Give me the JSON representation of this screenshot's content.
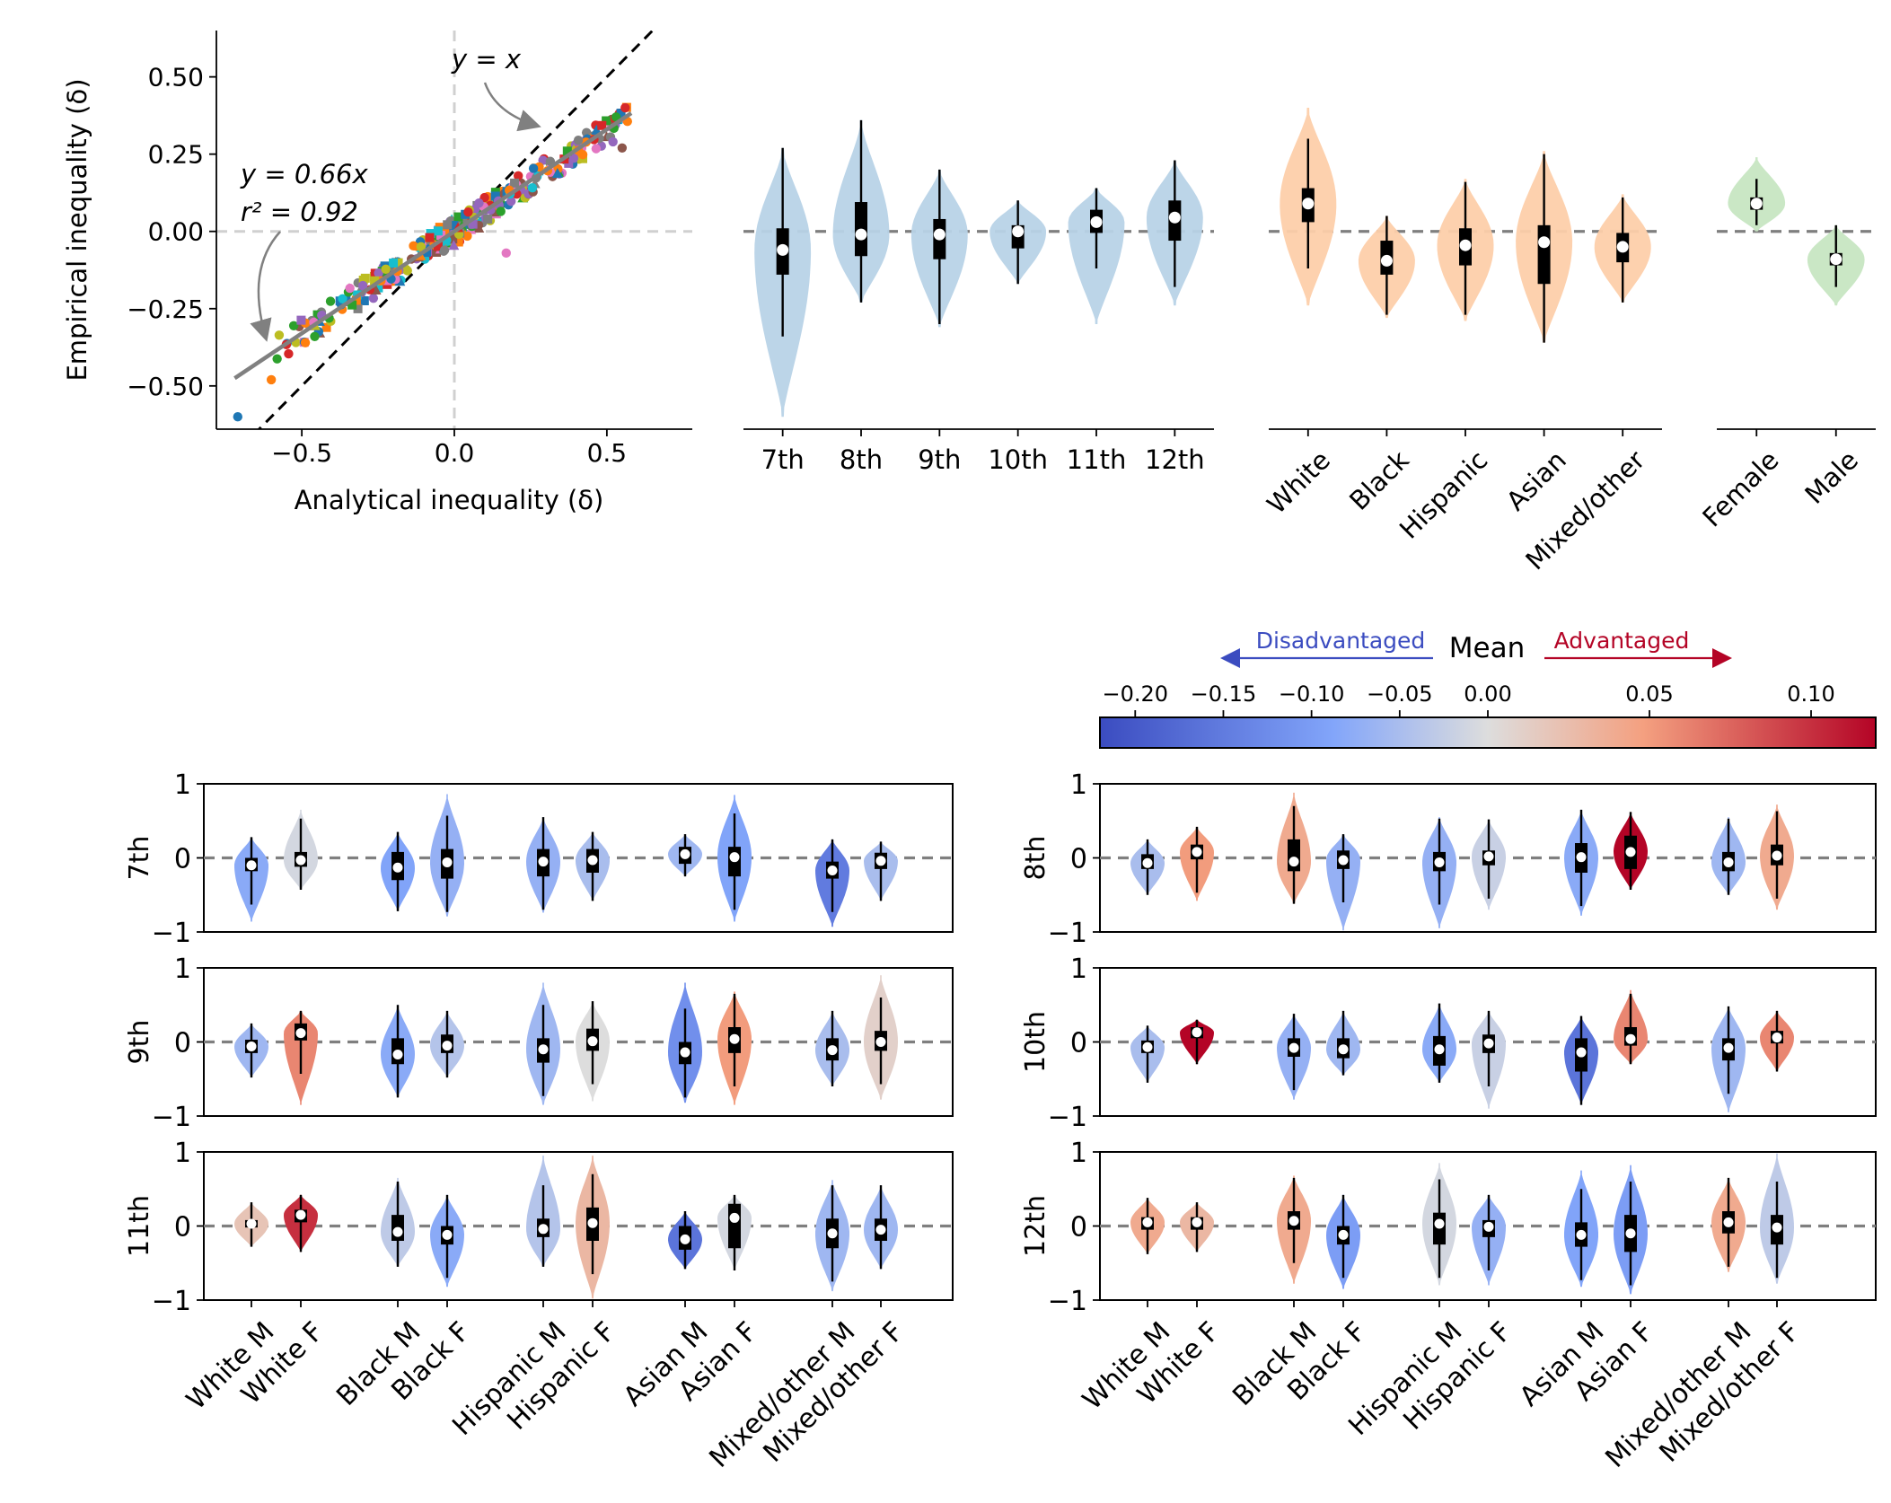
{
  "colors": {
    "grade_violin": "#b8d3e7",
    "race_violin": "#fdcfaa",
    "gender_violin": "#c7e6c2",
    "dashed": "#7f7f7f",
    "cmap_low": "#3b4cc0",
    "cmap_mid": "#dddddd",
    "cmap_high": "#b40426",
    "disadvantaged_text": "#3b4cc0",
    "advantaged_text": "#b40426"
  },
  "chart_data": [
    {
      "id": "scatter",
      "type": "scatter",
      "xlabel": "Analytical inequality (δ)",
      "ylabel": "Empirical inequality (δ)",
      "xlim": [
        -0.78,
        0.78
      ],
      "ylim": [
        -0.64,
        0.65
      ],
      "xticks": [
        -0.5,
        0.0,
        0.5
      ],
      "xtick_labels": [
        "−0.5",
        "0.0",
        "0.5"
      ],
      "yticks": [
        -0.5,
        -0.25,
        0.0,
        0.25,
        0.5
      ],
      "ytick_labels": [
        "−0.50",
        "−0.25",
        "0.00",
        "0.25",
        "0.50"
      ],
      "identity_label": "y = x",
      "fit_label": "y = 0.66x",
      "r2_label": "r² = 0.92",
      "fit_slope": 0.66,
      "r2": 0.92,
      "outliers": [
        [
          -0.71,
          -0.6
        ],
        [
          -0.6,
          -0.48
        ],
        [
          0.53,
          0.37
        ],
        [
          0.56,
          0.4
        ],
        [
          0.52,
          0.29
        ],
        [
          0.55,
          0.27
        ],
        [
          0.17,
          -0.07
        ]
      ],
      "n_points": 330,
      "point_colors": [
        "#1f77b4",
        "#ff7f0e",
        "#2ca02c",
        "#d62728",
        "#9467bd",
        "#8c564b",
        "#e377c2",
        "#7f7f7f",
        "#bcbd22",
        "#17becf"
      ]
    },
    {
      "id": "grade",
      "type": "violin",
      "categories": [
        "7th",
        "8th",
        "9th",
        "10th",
        "11th",
        "12th"
      ],
      "medians": [
        -0.06,
        -0.01,
        -0.01,
        0.0,
        0.03,
        0.045
      ],
      "q1": [
        -0.14,
        -0.08,
        -0.09,
        -0.055,
        -0.005,
        -0.03
      ],
      "q3": [
        0.01,
        0.095,
        0.04,
        0.02,
        0.07,
        0.1
      ],
      "whisker_min": [
        -0.34,
        -0.23,
        -0.3,
        -0.17,
        -0.12,
        -0.18
      ],
      "whisker_max": [
        0.27,
        0.36,
        0.2,
        0.1,
        0.14,
        0.23
      ],
      "violin_min": [
        -0.6,
        -0.23,
        -0.31,
        -0.17,
        -0.3,
        -0.24
      ],
      "violin_max": [
        0.27,
        0.36,
        0.2,
        0.1,
        0.14,
        0.23
      ],
      "ylim": [
        -0.64,
        0.65
      ]
    },
    {
      "id": "race",
      "type": "violin",
      "categories": [
        "White",
        "Black",
        "Hispanic",
        "Asian",
        "Mixed/other"
      ],
      "medians": [
        0.09,
        -0.095,
        -0.045,
        -0.035,
        -0.05
      ],
      "q1": [
        0.03,
        -0.14,
        -0.11,
        -0.17,
        -0.1
      ],
      "q3": [
        0.14,
        -0.03,
        0.01,
        0.02,
        -0.005
      ],
      "whisker_min": [
        -0.12,
        -0.27,
        -0.27,
        -0.36,
        -0.23
      ],
      "whisker_max": [
        0.3,
        0.05,
        0.16,
        0.25,
        0.11
      ],
      "violin_min": [
        -0.24,
        -0.28,
        -0.29,
        -0.36,
        -0.23
      ],
      "violin_max": [
        0.4,
        0.05,
        0.17,
        0.26,
        0.12
      ],
      "ylim": [
        -0.64,
        0.65
      ]
    },
    {
      "id": "gender",
      "type": "violin",
      "categories": [
        "Female",
        "Male"
      ],
      "medians": [
        0.09,
        -0.09
      ],
      "q1": [
        0.07,
        -0.11
      ],
      "q3": [
        0.11,
        -0.07
      ],
      "whisker_min": [
        0.02,
        -0.18
      ],
      "whisker_max": [
        0.17,
        0.02
      ],
      "violin_min": [
        0.0,
        -0.24
      ],
      "violin_max": [
        0.24,
        0.02
      ],
      "ylim": [
        -0.64,
        0.65
      ]
    },
    {
      "id": "grade_race_gender",
      "type": "violin",
      "groups": [
        "White M",
        "White F",
        "Black M",
        "Black F",
        "Hispanic M",
        "Hispanic F",
        "Asian M",
        "Asian F",
        "Mixed/other M",
        "Mixed/other F"
      ],
      "ylim": [
        -1,
        1
      ],
      "yticks": [
        -1,
        0,
        1
      ],
      "ytick_labels": [
        "−1",
        "0",
        "1"
      ],
      "color_metric": "mean",
      "panels": [
        {
          "grade": "7th",
          "medians": [
            -0.1,
            -0.03,
            -0.13,
            -0.06,
            -0.05,
            -0.03,
            0.05,
            0.01,
            -0.17,
            -0.04
          ],
          "means": [
            -0.08,
            -0.01,
            -0.09,
            -0.07,
            -0.07,
            -0.05,
            -0.06,
            -0.09,
            -0.15,
            -0.05
          ],
          "q1": [
            -0.18,
            -0.12,
            -0.3,
            -0.28,
            -0.25,
            -0.2,
            -0.08,
            -0.25,
            -0.28,
            -0.15
          ],
          "q3": [
            0.0,
            0.08,
            0.08,
            0.12,
            0.12,
            0.12,
            0.15,
            0.15,
            -0.05,
            0.07
          ],
          "min": [
            -0.86,
            -0.43,
            -0.72,
            -0.79,
            -0.74,
            -0.58,
            -0.25,
            -0.86,
            -0.93,
            -0.58
          ],
          "max": [
            0.28,
            0.65,
            0.35,
            0.86,
            0.55,
            0.35,
            0.32,
            0.85,
            0.25,
            0.22
          ]
        },
        {
          "grade": "8th",
          "medians": [
            -0.07,
            0.08,
            -0.05,
            -0.03,
            -0.06,
            0.02,
            0.01,
            0.08,
            -0.06,
            0.03
          ],
          "means": [
            -0.05,
            0.05,
            0.04,
            -0.07,
            -0.07,
            -0.02,
            -0.08,
            0.12,
            -0.06,
            0.04
          ],
          "q1": [
            -0.15,
            -0.02,
            -0.18,
            -0.15,
            -0.18,
            -0.1,
            -0.2,
            -0.15,
            -0.18,
            -0.1
          ],
          "q3": [
            0.05,
            0.18,
            0.25,
            0.1,
            0.08,
            0.1,
            0.2,
            0.3,
            0.08,
            0.18
          ],
          "min": [
            -0.5,
            -0.58,
            -0.62,
            -0.98,
            -0.95,
            -0.7,
            -0.78,
            -0.43,
            -0.5,
            -0.7
          ],
          "max": [
            0.25,
            0.42,
            0.88,
            0.32,
            0.55,
            0.52,
            0.65,
            0.62,
            0.55,
            0.72
          ]
        },
        {
          "grade": "9th",
          "medians": [
            -0.06,
            0.12,
            -0.17,
            -0.05,
            -0.1,
            0.01,
            -0.14,
            0.04,
            -0.11,
            0.0
          ],
          "means": [
            -0.06,
            0.06,
            -0.08,
            -0.04,
            -0.06,
            0.0,
            -0.12,
            0.05,
            -0.05,
            0.01
          ],
          "q1": [
            -0.15,
            0.02,
            -0.3,
            -0.15,
            -0.28,
            -0.12,
            -0.3,
            -0.15,
            -0.25,
            -0.12
          ],
          "q3": [
            0.03,
            0.25,
            0.05,
            0.1,
            0.05,
            0.18,
            0.0,
            0.2,
            0.05,
            0.15
          ],
          "min": [
            -0.48,
            -0.85,
            -0.75,
            -0.48,
            -0.85,
            -0.8,
            -0.82,
            -0.85,
            -0.6,
            -0.78
          ],
          "max": [
            0.25,
            0.42,
            0.5,
            0.42,
            0.8,
            0.55,
            0.8,
            0.68,
            0.42,
            0.9
          ]
        },
        {
          "grade": "10th",
          "medians": [
            -0.07,
            0.13,
            -0.08,
            -0.1,
            -0.1,
            -0.02,
            -0.14,
            0.04,
            -0.08,
            0.06
          ],
          "means": [
            -0.05,
            0.12,
            -0.07,
            -0.06,
            -0.08,
            -0.02,
            -0.16,
            0.06,
            -0.06,
            0.06
          ],
          "q1": [
            -0.15,
            0.05,
            -0.2,
            -0.22,
            -0.32,
            -0.15,
            -0.4,
            -0.05,
            -0.25,
            -0.02
          ],
          "q3": [
            0.02,
            0.2,
            0.05,
            0.05,
            0.08,
            0.1,
            0.05,
            0.2,
            0.05,
            0.15
          ],
          "min": [
            -0.55,
            -0.3,
            -0.78,
            -0.45,
            -0.55,
            -0.9,
            -0.85,
            -0.3,
            -0.95,
            -0.4
          ],
          "max": [
            0.22,
            0.3,
            0.38,
            0.42,
            0.52,
            0.42,
            0.35,
            0.7,
            0.48,
            0.42
          ]
        },
        {
          "grade": "11th",
          "medians": [
            0.03,
            0.15,
            -0.08,
            -0.12,
            -0.04,
            0.04,
            -0.18,
            0.11,
            -0.1,
            -0.05
          ],
          "means": [
            0.02,
            0.1,
            -0.03,
            -0.08,
            -0.04,
            0.03,
            -0.16,
            -0.01,
            -0.06,
            -0.06
          ],
          "q1": [
            -0.02,
            0.05,
            -0.2,
            -0.25,
            -0.15,
            -0.2,
            -0.32,
            -0.3,
            -0.3,
            -0.2
          ],
          "q3": [
            0.08,
            0.22,
            0.15,
            0.0,
            0.1,
            0.25,
            0.0,
            0.3,
            0.1,
            0.1
          ],
          "min": [
            -0.28,
            -0.35,
            -0.55,
            -0.82,
            -0.55,
            -0.98,
            -0.58,
            -0.6,
            -0.88,
            -0.58
          ],
          "max": [
            0.32,
            0.42,
            0.65,
            0.42,
            0.95,
            0.95,
            0.2,
            0.42,
            0.62,
            0.55
          ]
        },
        {
          "grade": "12th",
          "medians": [
            0.05,
            0.05,
            0.07,
            -0.12,
            0.03,
            -0.01,
            -0.12,
            -0.1,
            0.05,
            -0.02
          ],
          "means": [
            0.04,
            0.03,
            0.04,
            -0.1,
            -0.01,
            -0.07,
            -0.09,
            -0.1,
            0.04,
            -0.03
          ],
          "q1": [
            -0.05,
            -0.05,
            -0.05,
            -0.25,
            -0.25,
            -0.15,
            -0.28,
            -0.35,
            -0.1,
            -0.25
          ],
          "q3": [
            0.12,
            0.12,
            0.2,
            0.0,
            0.18,
            0.08,
            0.05,
            0.15,
            0.2,
            0.15
          ],
          "min": [
            -0.38,
            -0.35,
            -0.78,
            -0.85,
            -0.8,
            -0.8,
            -0.82,
            -0.92,
            -0.62,
            -0.78
          ],
          "max": [
            0.38,
            0.32,
            0.68,
            0.42,
            0.85,
            0.42,
            0.75,
            0.82,
            0.65,
            0.98
          ]
        }
      ]
    },
    {
      "id": "colorbar",
      "type": "colorbar",
      "title": "Mean",
      "range": [
        -0.22,
        0.12
      ],
      "ticks": [
        -0.2,
        -0.15,
        -0.1,
        -0.05,
        0.0,
        0.05,
        0.1
      ],
      "tick_labels": [
        "−0.20",
        "−0.15",
        "−0.10",
        "−0.05",
        "0.00",
        "0.05",
        "0.10"
      ],
      "disadvantaged_label": "Disadvantaged",
      "advantaged_label": "Advantaged"
    }
  ]
}
